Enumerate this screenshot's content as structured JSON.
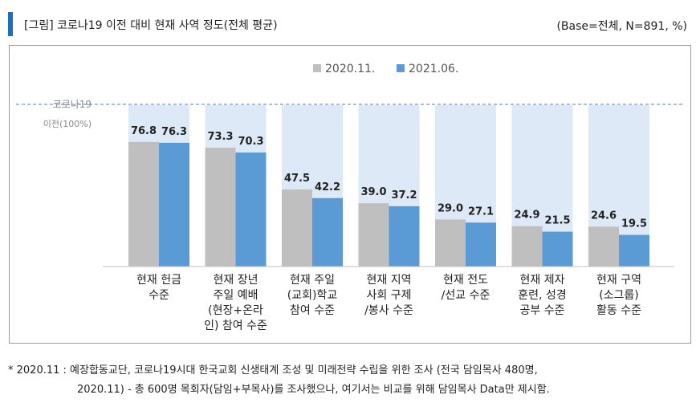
{
  "header": {
    "title": "[그림] 코로나19 이전 대비 현재 사역 정도(전체 평균)",
    "base": "(Base=전체, N=891, %)"
  },
  "chart_data": {
    "type": "bar",
    "categories": [
      [
        "현재 헌금",
        "수준"
      ],
      [
        "현재 장년",
        "주일 예배",
        "(현장+온라",
        "인) 참여 수준"
      ],
      [
        "현재 주일",
        "(교회)학교",
        "참여 수준"
      ],
      [
        "현재 지역",
        "사회 구제",
        "/봉사 수준"
      ],
      [
        "현재 전도",
        "/선교 수준"
      ],
      [
        "현재 제자",
        "훈련, 성경",
        "공부 수준"
      ],
      [
        "현재 구역",
        "(소그룹)",
        "활동 수준"
      ]
    ],
    "series": [
      {
        "name": "2020.11.",
        "values": [
          76.8,
          73.3,
          47.5,
          39.0,
          29.0,
          24.9,
          24.6
        ]
      },
      {
        "name": "2021.06.",
        "values": [
          76.3,
          70.3,
          42.2,
          37.2,
          27.1,
          21.5,
          19.5
        ]
      }
    ],
    "value_labels": [
      [
        "76.8",
        "73.3",
        "47.5",
        "39.0",
        "29.0",
        "24.9",
        "24.6"
      ],
      [
        "76.3",
        "70.3",
        "42.2",
        "37.2",
        "27.1",
        "21.5",
        "19.5"
      ]
    ],
    "reference_line": {
      "label": [
        "코로나19",
        "이전(100%)"
      ],
      "value": 100
    },
    "ylim": [
      0,
      100
    ],
    "legend_position": "top-center",
    "colors": {
      "series_1": "#bfbfbf",
      "series_2": "#5b9bd5",
      "background_bar": "#dde9f6",
      "reference_line": "#4a7fc1"
    }
  },
  "footnote": {
    "line1": "* 2020.11 : 예장합동교단, 코로나19시대 한국교회 신생태계 조성 및 미래전략 수립을 위한 조사 (전국 담임목사 480명,",
    "line2": "2020.11) - 총 600명 목회자(담임+부목사)를 조사했으나, 여기서는 비교를 위해 담임목사 Data만 제시함."
  }
}
